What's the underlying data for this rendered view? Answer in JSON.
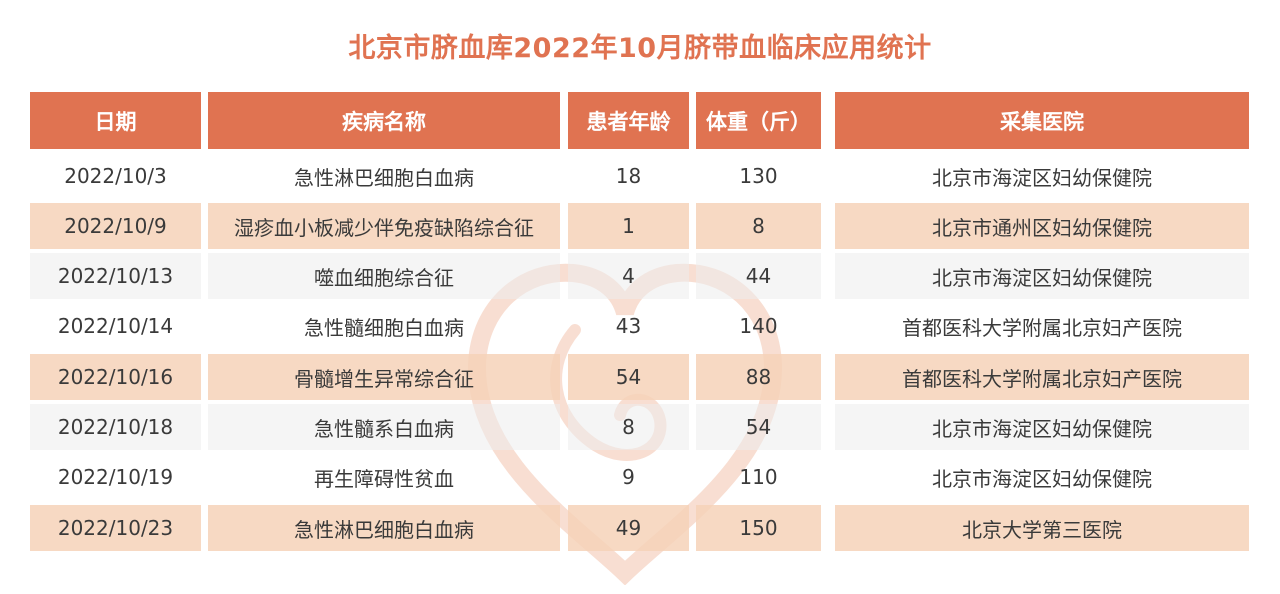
{
  "title": "北京市脐血库2022年10月脐带血临床应用统计",
  "colors": {
    "accent": "#e07351",
    "row_highlight": "#f6d2b8"
  },
  "table": {
    "headers": [
      "日期",
      "疾病名称",
      "患者年龄",
      "体重（斤）",
      "采集医院"
    ],
    "rows": [
      {
        "date": "2022/10/3",
        "disease": "急性淋巴细胞白血病",
        "age": "18",
        "weight": "130",
        "hospital": "北京市海淀区妇幼保健院"
      },
      {
        "date": "2022/10/9",
        "disease": "湿疹血小板减少伴免疫缺陷综合征",
        "age": "1",
        "weight": "8",
        "hospital": "北京市通州区妇幼保健院"
      },
      {
        "date": "2022/10/13",
        "disease": "噬血细胞综合征",
        "age": "4",
        "weight": "44",
        "hospital": "北京市海淀区妇幼保健院"
      },
      {
        "date": "2022/10/14",
        "disease": "急性髓细胞白血病",
        "age": "43",
        "weight": "140",
        "hospital": "首都医科大学附属北京妇产医院"
      },
      {
        "date": "2022/10/16",
        "disease": "骨髓增生异常综合征",
        "age": "54",
        "weight": "88",
        "hospital": "首都医科大学附属北京妇产医院"
      },
      {
        "date": "2022/10/18",
        "disease": "急性髓系白血病",
        "age": "8",
        "weight": "54",
        "hospital": "北京市海淀区妇幼保健院"
      },
      {
        "date": "2022/10/19",
        "disease": "再生障碍性贫血",
        "age": "9",
        "weight": "110",
        "hospital": "北京市海淀区妇幼保健院"
      },
      {
        "date": "2022/10/23",
        "disease": "急性淋巴细胞白血病",
        "age": "49",
        "weight": "150",
        "hospital": "北京大学第三医院"
      }
    ]
  }
}
